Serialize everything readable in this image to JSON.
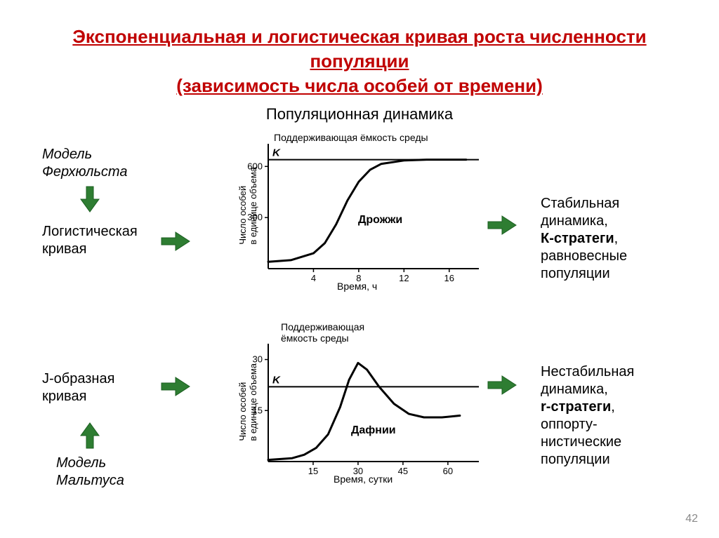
{
  "title": "Экспоненциальная и логистическая кривая роста численности популяции\n(зависимость числа особей от времени)",
  "subtitle": "Популяционная динамика",
  "page_number": "42",
  "arrow_color": "#2e7d32",
  "arrow_stroke": "#1b5e20",
  "curve_color": "#000000",
  "axis_color": "#000000",
  "left_labels": {
    "verhulst": "Модель\nФерхюльста",
    "logistic": "Логистическая\nкривая",
    "jshape": "J-образная\nкривая",
    "malthus": "Модель\nМальтуса"
  },
  "right_labels": {
    "stable": "Стабильная\nдинамика,\nК-стратеги,\nравновесные\nпопуляции",
    "unstable": "Нестабильная\nдинамика,\nr-стратеги,\nоппорту-\nнистические\nпопуляции"
  },
  "chart1": {
    "type": "line",
    "title_inside": "Дрожжи",
    "capacity_label": "Поддерживающая ёмкость среды",
    "k_label": "K",
    "y_axis": "Число особей\nв единице объема",
    "x_axis": "Время, ч",
    "y_ticks": [
      "300",
      "600"
    ],
    "x_ticks": [
      "4",
      "8",
      "12",
      "16"
    ],
    "x_range": [
      0,
      18
    ],
    "y_range": [
      0,
      700
    ],
    "capacity_y": 640,
    "curve_points": [
      [
        0,
        40
      ],
      [
        2,
        50
      ],
      [
        4,
        90
      ],
      [
        5,
        150
      ],
      [
        6,
        260
      ],
      [
        7,
        400
      ],
      [
        8,
        510
      ],
      [
        9,
        580
      ],
      [
        10,
        615
      ],
      [
        12,
        635
      ],
      [
        14,
        640
      ],
      [
        16,
        640
      ],
      [
        17.5,
        640
      ]
    ],
    "line_width": 3
  },
  "chart2": {
    "type": "line",
    "title_inside": "Дафнии",
    "capacity_label": "Поддерживающая\nёмкость среды",
    "k_label": "K",
    "y_axis": "Число особей\nв единице объема",
    "x_axis": "Время, сутки",
    "y_ticks": [
      "15",
      "30"
    ],
    "x_ticks": [
      "15",
      "30",
      "45",
      "60"
    ],
    "x_range": [
      0,
      68
    ],
    "y_range": [
      0,
      33
    ],
    "capacity_y": 22,
    "curve_points": [
      [
        0,
        0.5
      ],
      [
        8,
        1
      ],
      [
        12,
        2
      ],
      [
        16,
        4
      ],
      [
        20,
        8
      ],
      [
        24,
        16
      ],
      [
        27,
        24
      ],
      [
        30,
        29
      ],
      [
        33,
        27
      ],
      [
        37,
        22
      ],
      [
        42,
        17
      ],
      [
        47,
        14
      ],
      [
        52,
        13
      ],
      [
        58,
        13
      ],
      [
        64,
        13.5
      ]
    ],
    "line_width": 3
  }
}
